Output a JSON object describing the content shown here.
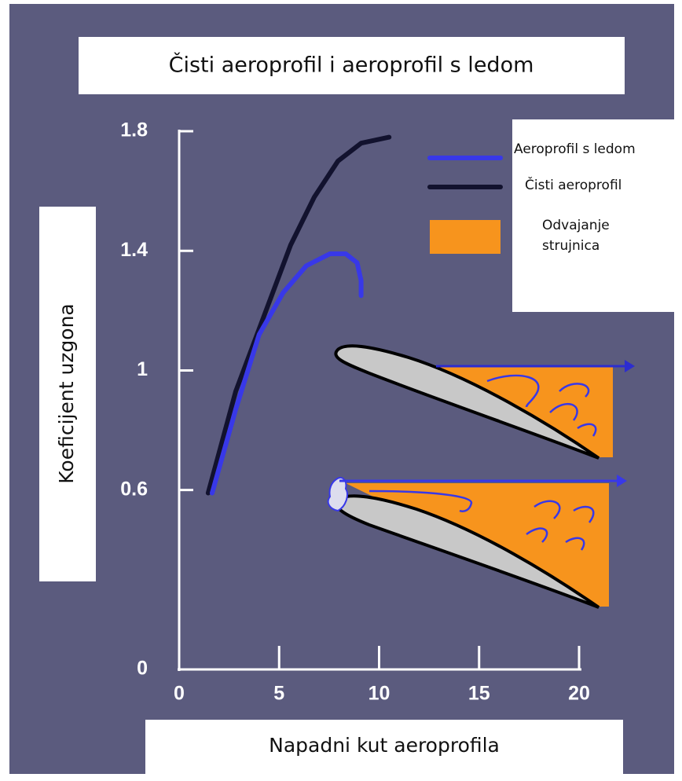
{
  "chart_data": {
    "type": "line",
    "title": "Čisti aeroprofil i aeroprofil s ledom",
    "x_label": "Napadni kut aeroprofila",
    "y_label": "Koeficijent uzgona",
    "xlim": [
      0,
      20
    ],
    "xticks": [
      0,
      5,
      10,
      15,
      20
    ],
    "ylim": [
      0,
      1.8
    ],
    "yticks": [
      0,
      0.6,
      1.0,
      1.4,
      1.8
    ],
    "series": [
      {
        "name": "Aeroprofil s ledom",
        "color": "#3838e8",
        "x": [
          1.65,
          2.83,
          4.0,
          5.2,
          6.36,
          7.54,
          8.33,
          8.9,
          9.1,
          9.1
        ],
        "values": [
          0.59,
          0.87,
          1.12,
          1.26,
          1.35,
          1.39,
          1.39,
          1.36,
          1.3,
          1.25
        ]
      },
      {
        "name": "Čisti aeroprofil",
        "color": "#12122e",
        "x": [
          1.45,
          2.83,
          4.4,
          5.58,
          6.76,
          7.94,
          9.1,
          10.5
        ],
        "values": [
          0.59,
          0.93,
          1.21,
          1.42,
          1.58,
          1.7,
          1.76,
          1.78
        ]
      }
    ],
    "annotation": "Odvajanje strujnica",
    "annotation_color": "#f7941d"
  }
}
